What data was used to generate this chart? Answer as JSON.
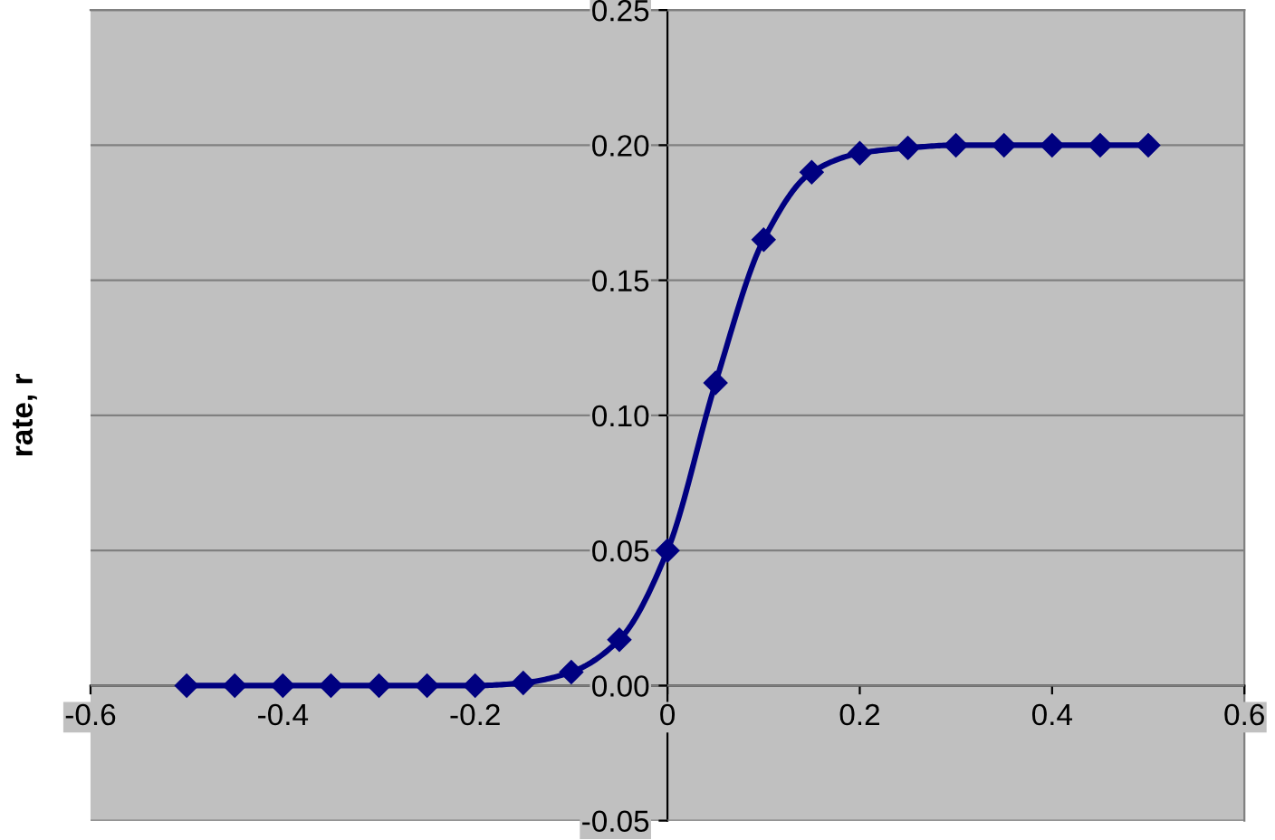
{
  "chart_data": {
    "type": "line",
    "ylabel": "rate, r",
    "x": [
      -0.5,
      -0.45,
      -0.4,
      -0.35,
      -0.3,
      -0.25,
      -0.2,
      -0.15,
      -0.1,
      -0.05,
      0,
      0.05,
      0.1,
      0.15,
      0.2,
      0.25,
      0.3,
      0.35,
      0.4,
      0.45,
      0.5
    ],
    "series": [
      {
        "color": "#000080",
        "values": [
          0,
          0,
          0,
          0,
          0,
          0,
          0,
          0.001,
          0.005,
          0.017,
          0.05,
          0.112,
          0.165,
          0.19,
          0.197,
          0.199,
          0.2,
          0.2,
          0.2,
          0.2,
          0.2
        ]
      }
    ],
    "xlim": [
      -0.6,
      0.6
    ],
    "xticks": [
      -0.6,
      -0.4,
      -0.2,
      0,
      0.2,
      0.4,
      0.6
    ],
    "ylim": [
      -0.05,
      0.25
    ],
    "yticks": [
      {
        "value": -0.05,
        "label": "-0.05"
      },
      {
        "value": 0,
        "label": "0.00"
      },
      {
        "value": 0.05,
        "label": "0.05"
      },
      {
        "value": 0.1,
        "label": "0.10"
      },
      {
        "value": 0.15,
        "label": "0.15"
      },
      {
        "value": 0.2,
        "label": "0.20"
      },
      {
        "value": 0.25,
        "label": "0.25"
      }
    ],
    "grid": "y",
    "marker": "diamond",
    "line_style": "solid"
  }
}
